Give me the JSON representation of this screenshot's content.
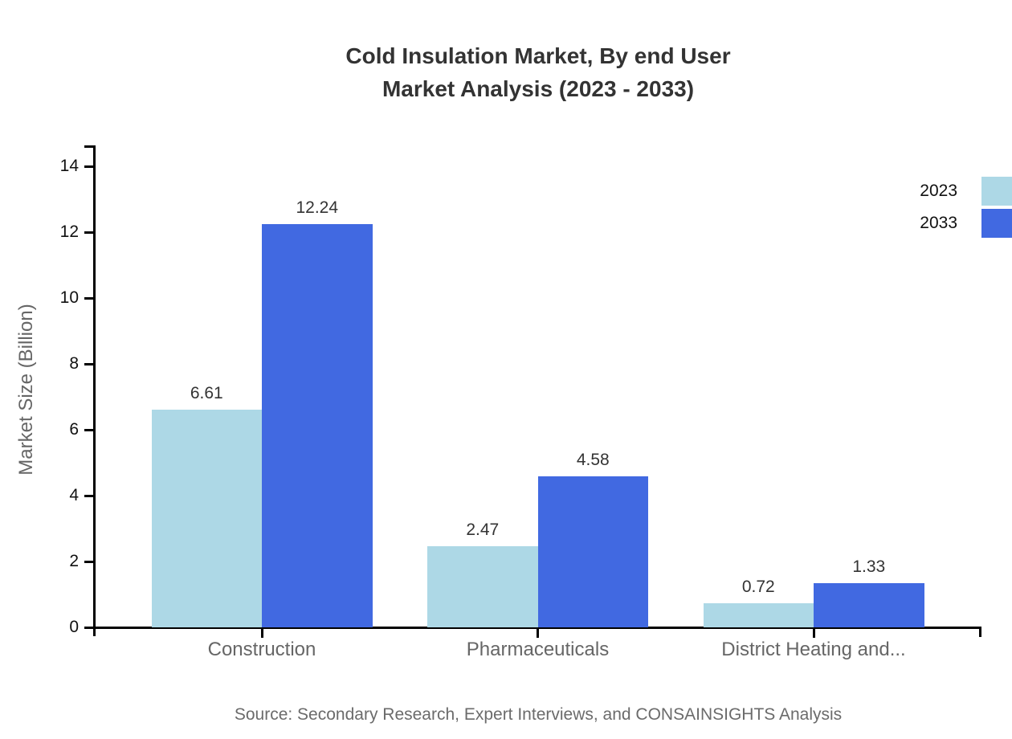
{
  "title": {
    "line1": "Cold Insulation Market, By end User",
    "line2": "Market Analysis (2023 - 2033)"
  },
  "chart_data": {
    "type": "bar",
    "categories": [
      "Construction",
      "Pharmaceuticals",
      "District Heating and..."
    ],
    "series": [
      {
        "name": "2023",
        "color": "#ADD8E6",
        "values": [
          6.61,
          2.47,
          0.72
        ]
      },
      {
        "name": "2033",
        "color": "#4169E1",
        "values": [
          12.24,
          4.58,
          1.33
        ]
      }
    ],
    "value_labels": [
      "6.61",
      "12.24",
      "2.47",
      "4.58",
      "0.72",
      "1.33"
    ],
    "title": "Cold Insulation Market, By end User Market Analysis (2023 - 2033)",
    "xlabel": "",
    "ylabel": "Market Size (Billion)",
    "ylim": [
      0,
      14
    ],
    "yticks": [
      0,
      2,
      4,
      6,
      8,
      10,
      12,
      14
    ],
    "grid": false,
    "legend_position": "top-right"
  },
  "source": "Source: Secondary Research, Expert Interviews, and CONSAINSIGHTS Analysis",
  "colors": {
    "axis": "#000000",
    "title_text": "#333333",
    "tick_text": "#111111",
    "value_label_text": "#333333",
    "category_text": "#666666",
    "source_text": "#6b6b6b"
  }
}
